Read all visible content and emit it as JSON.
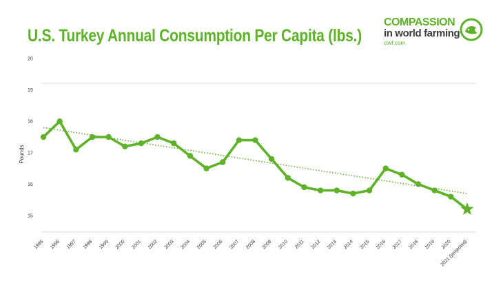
{
  "chart_data": {
    "type": "line",
    "title": "U.S. Turkey Annual Consumption Per Capita (lbs.)",
    "ylabel": "Pounds",
    "xlabel": "",
    "ylim": [
      15,
      20
    ],
    "yticks": [
      15,
      16,
      17,
      18,
      19,
      20
    ],
    "categories": [
      "1995",
      "1996",
      "1997",
      "1998",
      "1999",
      "2000",
      "2001",
      "2002",
      "2003",
      "2004",
      "2005",
      "2006",
      "2007",
      "2008",
      "2009",
      "2010",
      "2011",
      "2012",
      "2013",
      "2014",
      "2015",
      "2016",
      "2017",
      "2018",
      "2019",
      "2020",
      "2021 (projected)"
    ],
    "series": [
      {
        "values": [
          17.5,
          18.0,
          17.1,
          17.5,
          17.5,
          17.2,
          17.3,
          17.5,
          17.3,
          16.9,
          16.5,
          16.7,
          17.4,
          17.4,
          16.8,
          16.2,
          15.9,
          15.8,
          15.8,
          15.7,
          15.8,
          16.5,
          16.3,
          16.0,
          15.8,
          15.6,
          15.2
        ],
        "marker_last": "star"
      }
    ],
    "trendline": {
      "style": "dotted",
      "start": 17.8,
      "end": 15.7
    },
    "grid": false,
    "color": "#5db228"
  },
  "logo": {
    "line1": "COMPASSION",
    "line2": "in world farming",
    "line3": "ciwf.com"
  }
}
